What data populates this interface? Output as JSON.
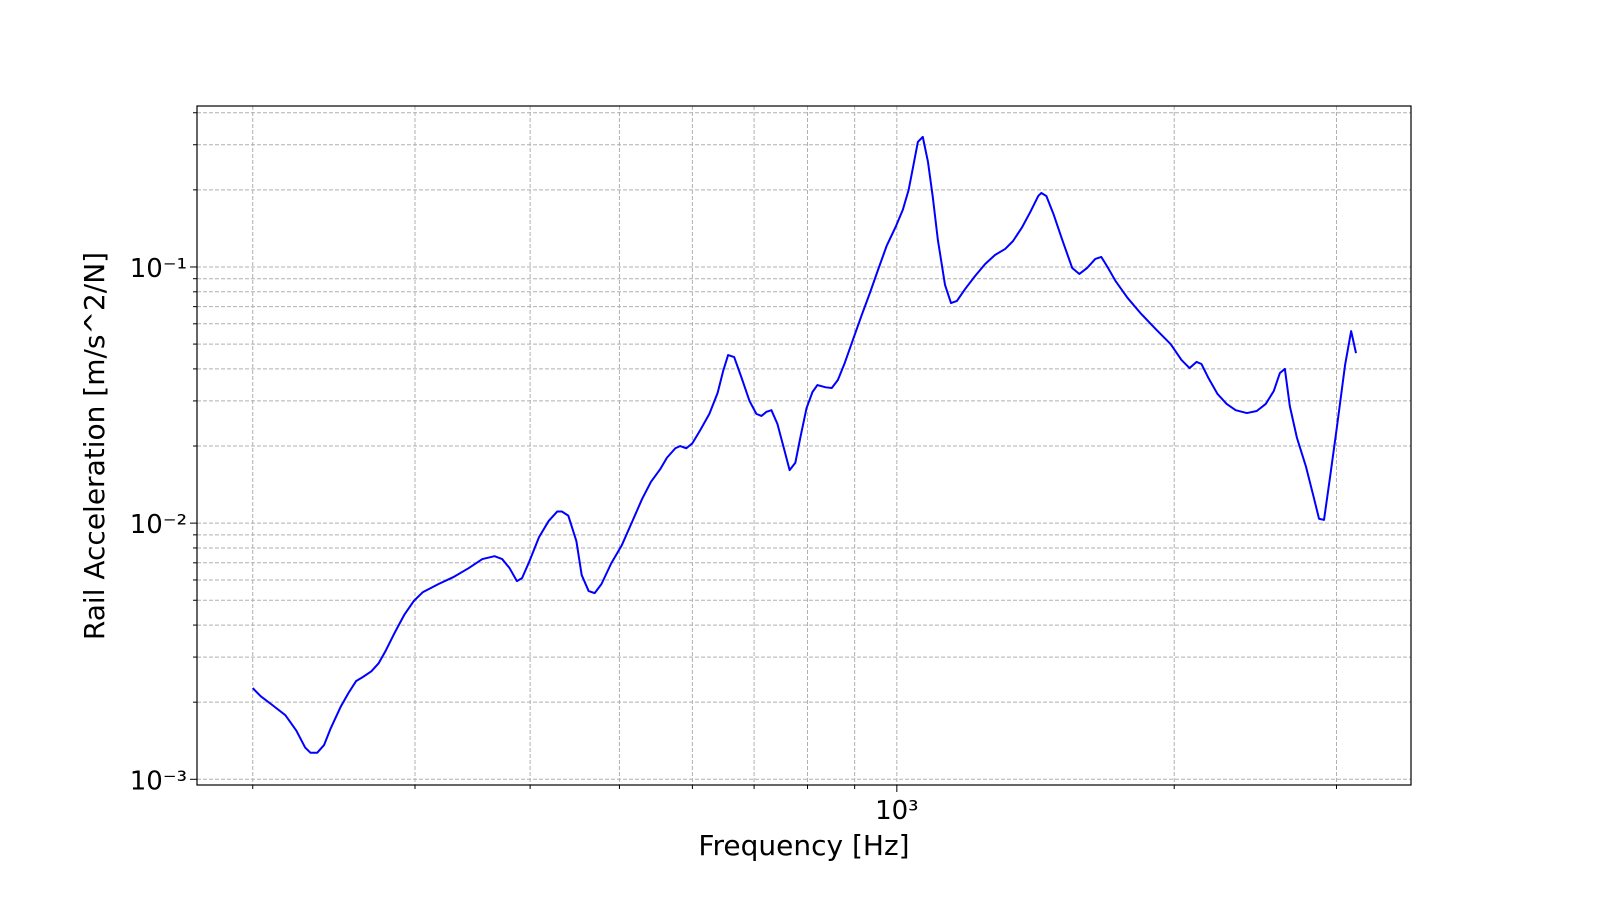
{
  "chart_data": {
    "type": "line",
    "xlabel": "Frequency [Hz]",
    "ylabel": "Rail Acceleration [m/s^2/N]",
    "xscale": "log",
    "yscale": "log",
    "grid": true,
    "color": "#0000ff",
    "xlim": [
      174,
      3614
    ],
    "ylim": [
      0.00095,
      0.425
    ],
    "xticks": [
      {
        "value": 1000,
        "label": "10³"
      }
    ],
    "xminorticks": [
      200,
      300,
      400,
      500,
      600,
      700,
      800,
      900,
      2000,
      3000
    ],
    "yticks": [
      {
        "value": 0.001,
        "label": "10⁻³"
      },
      {
        "value": 0.01,
        "label": "10⁻²"
      },
      {
        "value": 0.1,
        "label": "10⁻¹"
      }
    ],
    "yminorticks": [
      0.002,
      0.003,
      0.004,
      0.005,
      0.006,
      0.007,
      0.008,
      0.009,
      0.02,
      0.03,
      0.04,
      0.05,
      0.06,
      0.07,
      0.08,
      0.09,
      0.2,
      0.3,
      0.4
    ],
    "x": [
      200,
      204,
      210,
      217,
      223,
      228,
      231,
      235,
      239,
      243,
      249,
      254,
      259,
      263,
      269,
      274,
      279,
      285,
      292,
      299,
      306,
      318,
      330,
      343,
      355,
      366,
      373,
      380,
      387,
      392,
      399,
      409,
      419,
      428,
      433,
      440,
      449,
      455,
      463,
      470,
      478,
      490,
      503,
      516,
      529,
      541,
      554,
      563,
      575,
      582,
      591,
      600,
      612,
      626,
      639,
      648,
      656,
      666,
      678,
      692,
      704,
      713,
      722,
      731,
      742,
      755,
      765,
      776,
      786,
      798,
      810,
      820,
      837,
      850,
      863,
      878,
      896,
      916,
      935,
      954,
      975,
      998,
      1015,
      1030,
      1041,
      1054,
      1067,
      1081,
      1094,
      1108,
      1128,
      1145,
      1162,
      1186,
      1216,
      1247,
      1278,
      1311,
      1337,
      1368,
      1396,
      1424,
      1435,
      1453,
      1479,
      1512,
      1550,
      1578,
      1609,
      1642,
      1667,
      1693,
      1727,
      1780,
      1838,
      1909,
      1982,
      2037,
      2078,
      2115,
      2141,
      2179,
      2229,
      2280,
      2332,
      2398,
      2458,
      2514,
      2565,
      2604,
      2637,
      2670,
      2718,
      2780,
      2836,
      2872,
      2908,
      2952,
      3004,
      3065,
      3112,
      3150
    ],
    "values": [
      0.00227,
      0.00211,
      0.00195,
      0.00178,
      0.00155,
      0.00133,
      0.00127,
      0.00127,
      0.00136,
      0.00158,
      0.00191,
      0.00217,
      0.00242,
      0.0025,
      0.00264,
      0.00284,
      0.00319,
      0.00372,
      0.00438,
      0.00496,
      0.00538,
      0.00578,
      0.00615,
      0.00667,
      0.00724,
      0.00743,
      0.00724,
      0.00667,
      0.00594,
      0.0061,
      0.00705,
      0.00882,
      0.0102,
      0.0111,
      0.0111,
      0.0107,
      0.00851,
      0.00627,
      0.00543,
      0.00533,
      0.00578,
      0.00698,
      0.0082,
      0.0101,
      0.0124,
      0.0145,
      0.0163,
      0.018,
      0.0196,
      0.02,
      0.0196,
      0.0205,
      0.0231,
      0.0267,
      0.0322,
      0.0393,
      0.0453,
      0.0445,
      0.0372,
      0.03,
      0.0267,
      0.0262,
      0.0272,
      0.0276,
      0.0244,
      0.0193,
      0.0161,
      0.0172,
      0.0217,
      0.0281,
      0.0325,
      0.0346,
      0.0339,
      0.0337,
      0.0362,
      0.0422,
      0.0519,
      0.0649,
      0.0792,
      0.0973,
      0.121,
      0.1445,
      0.167,
      0.2,
      0.2436,
      0.3077,
      0.322,
      0.257,
      0.1876,
      0.1275,
      0.0851,
      0.0723,
      0.0737,
      0.082,
      0.0922,
      0.1027,
      0.1114,
      0.1176,
      0.1263,
      0.1432,
      0.164,
      0.1893,
      0.1945,
      0.1893,
      0.161,
      0.1275,
      0.0991,
      0.0939,
      0.0991,
      0.1075,
      0.1094,
      0.1,
      0.0882,
      0.0757,
      0.0661,
      0.0573,
      0.05,
      0.0433,
      0.0403,
      0.0426,
      0.0418,
      0.0368,
      0.0319,
      0.0292,
      0.0276,
      0.0269,
      0.0274,
      0.0292,
      0.0328,
      0.0385,
      0.04,
      0.0286,
      0.0215,
      0.0166,
      0.0125,
      0.0104,
      0.0103,
      0.0151,
      0.0239,
      0.0414,
      0.0562,
      0.0461
    ]
  }
}
